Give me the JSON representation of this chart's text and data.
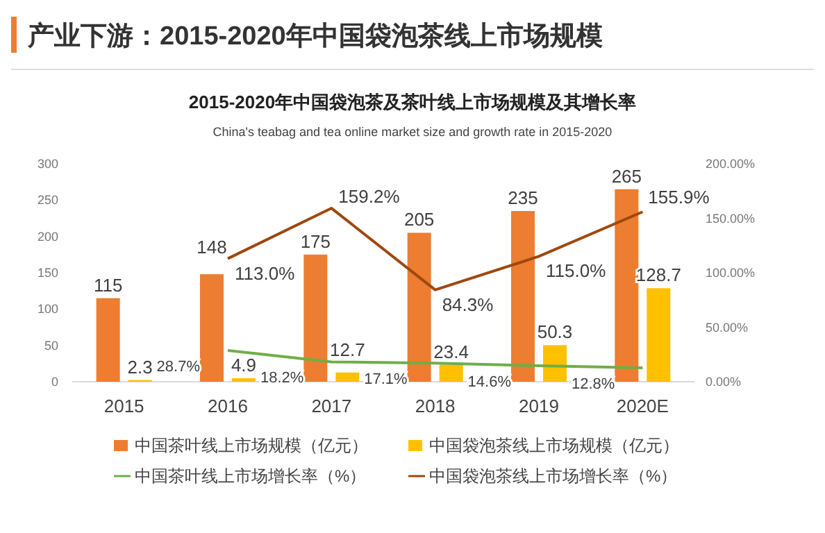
{
  "chart_data": {
    "type": "bar",
    "title": "2015-2020年中国袋泡茶及茶叶线上市场规模及其增长率",
    "subtitle": "China's teabag  and tea online market size and growth rate in 2015-2020",
    "annotations": [
      "产业下游：2015-2020年中国袋泡茶线上市场规模"
    ],
    "categories": [
      "2015",
      "2016",
      "2017",
      "2018",
      "2019",
      "2020E"
    ],
    "series": [
      {
        "name": "中国茶叶线上市场规模（亿元）",
        "color": "#ed7d31",
        "values": [
          115,
          148,
          175,
          205,
          235,
          265
        ],
        "value_labels": [
          "115",
          "148",
          "175",
          "205",
          "235",
          "265"
        ]
      },
      {
        "name": "中国袋泡茶线上市场规模（亿元）",
        "color": "#ffc000",
        "values": [
          2.3,
          4.9,
          12.7,
          23.4,
          50.3,
          128.7
        ],
        "value_labels": [
          "2.3",
          "4.9",
          "12.7",
          "23.4",
          "50.3",
          "128.7"
        ]
      },
      {
        "name": "中国茶叶线上市场增长率（%）",
        "type": "line",
        "axis": "y2",
        "color": "#70ad47",
        "values": [
          null,
          28.7,
          18.2,
          17.1,
          14.6,
          12.8
        ],
        "value_labels": [
          null,
          "28.7%",
          "18.2%",
          "17.1%",
          "14.6%",
          "12.8%"
        ]
      },
      {
        "name": "中国袋泡茶线上市场增长率（%）",
        "type": "line",
        "axis": "y2",
        "color": "#9e480e",
        "values": [
          null,
          113.0,
          159.2,
          84.3,
          115.0,
          155.9
        ],
        "value_labels": [
          null,
          "113.0%",
          "159.2%",
          "84.3%",
          "115.0%",
          "155.9%"
        ]
      }
    ],
    "ylim": [
      0,
      300
    ],
    "yticks": [
      0,
      50,
      100,
      150,
      200,
      250,
      300
    ],
    "y2lim": [
      0,
      200
    ],
    "y2ticks": [
      {
        "value": 0,
        "label": "0.00%"
      },
      {
        "value": 50,
        "label": "50.00%"
      },
      {
        "value": 100,
        "label": "100.00%"
      },
      {
        "value": 150,
        "label": "150.00%"
      },
      {
        "value": 200,
        "label": "200.00%"
      }
    ],
    "legend": "bottom",
    "grid": false
  }
}
